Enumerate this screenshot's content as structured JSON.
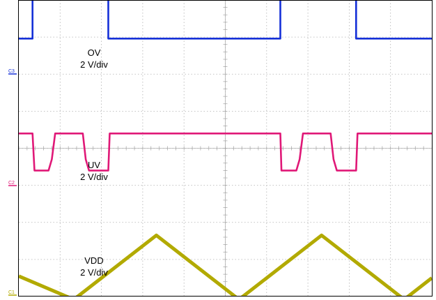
{
  "chart_data": {
    "type": "line",
    "grid": true,
    "xlim": [
      0,
      10
    ],
    "ylim": [
      -4,
      4
    ],
    "divisions": {
      "x": 10,
      "y": 8
    },
    "series": [
      {
        "name": "C3",
        "label_lines": [
          "OV",
          "2 V/div"
        ],
        "color": "#1530d8",
        "x": [
          0,
          0.333,
          0.333,
          2.167,
          2.167,
          6.333,
          6.333,
          8.167,
          8.167,
          10
        ],
        "y": [
          2.96,
          2.96,
          4.12,
          4.12,
          2.96,
          2.96,
          4.12,
          4.12,
          2.96,
          2.96
        ]
      },
      {
        "name": "C2",
        "label_lines": [
          "UV",
          "2 V/div"
        ],
        "color": "#e01877",
        "x": [
          0,
          0.333,
          0.38,
          0.72,
          0.8,
          0.88,
          1.55,
          1.62,
          1.7,
          2.167,
          2.2,
          4.5,
          6.333,
          6.36,
          6.72,
          6.8,
          6.88,
          7.55,
          7.62,
          7.7,
          8.167,
          8.2,
          10
        ],
        "y": [
          0.4,
          0.4,
          -0.6,
          -0.6,
          -0.3,
          0.4,
          0.4,
          -0.3,
          -0.6,
          -0.6,
          0.4,
          0.4,
          0.4,
          -0.6,
          -0.6,
          -0.3,
          0.4,
          0.4,
          -0.3,
          -0.6,
          -0.6,
          0.4,
          0.4
        ]
      },
      {
        "name": "C1",
        "label_lines": [
          "VDD",
          "2 V/div"
        ],
        "color": "#b2aa00",
        "x": [
          0,
          1.33,
          3.33,
          5.33,
          7.33,
          9.33,
          10
        ],
        "y": [
          -3.45,
          -4.08,
          -2.35,
          -4.08,
          -2.35,
          -4.08,
          -3.5
        ]
      }
    ]
  }
}
